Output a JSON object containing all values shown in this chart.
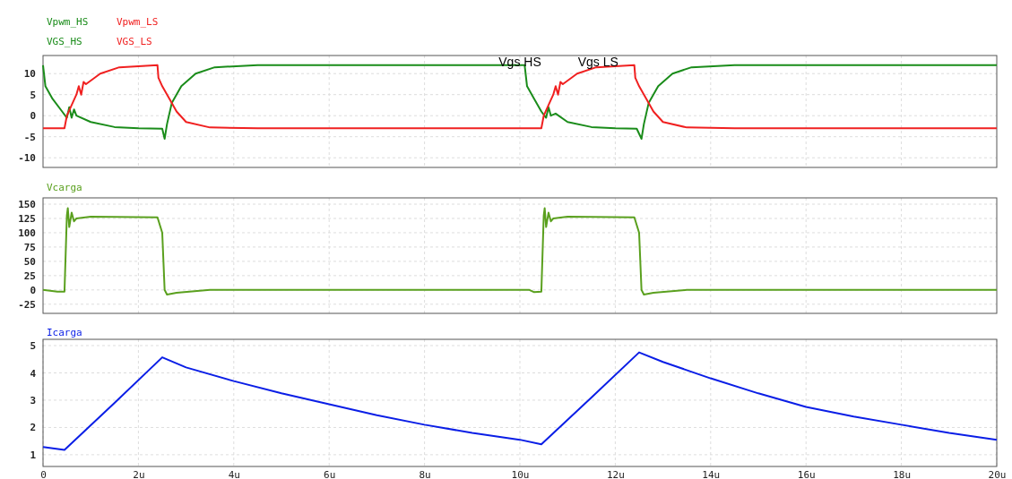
{
  "chart_data": [
    {
      "type": "line",
      "x": [
        0,
        0.05,
        0.2,
        0.4,
        0.5,
        0.55,
        0.6,
        0.65,
        0.7,
        1.0,
        1.5,
        2.0,
        2.5,
        2.55,
        2.6,
        2.7,
        2.9,
        3.2,
        3.6,
        4.5,
        10.1,
        10.15,
        10.3,
        10.45,
        10.55,
        10.6,
        10.65,
        10.75,
        11.0,
        11.5,
        12.0,
        12.45,
        12.55,
        12.6,
        12.7,
        12.9,
        13.2,
        13.6,
        14.5,
        20
      ],
      "series": [
        {
          "name": "VGS_HS",
          "color": "#1a8c1a",
          "values": [
            12,
            7,
            4,
            1,
            -0.5,
            2,
            -0.5,
            1.5,
            0,
            -1.5,
            -2.7,
            -3,
            -3.1,
            -5.5,
            -2,
            3,
            7,
            10,
            11.5,
            12,
            12,
            7,
            4,
            1,
            -0.5,
            2,
            0,
            0.5,
            -1.5,
            -2.7,
            -3,
            -3.1,
            -5.5,
            -2,
            3,
            7,
            10,
            11.5,
            12,
            12
          ]
        },
        {
          "name": "VGS_LS",
          "color": "#f02020",
          "x": [
            0,
            0.45,
            0.5,
            0.7,
            0.75,
            0.8,
            0.85,
            0.9,
            1.2,
            1.6,
            2.4,
            2.42,
            2.5,
            2.7,
            2.8,
            3.0,
            3.5,
            4.5,
            10.45,
            10.5,
            10.7,
            10.75,
            10.8,
            10.85,
            10.9,
            11.2,
            11.6,
            12.4,
            12.42,
            12.5,
            12.7,
            12.8,
            13.0,
            13.5,
            14.5,
            20
          ],
          "values": [
            -3,
            -3,
            0,
            5,
            7,
            5,
            8,
            7.5,
            10,
            11.5,
            12,
            9,
            7,
            3,
            1,
            -1.5,
            -2.8,
            -3,
            -3,
            0,
            5,
            7,
            5,
            8,
            7.5,
            10,
            11.5,
            12,
            9,
            7,
            3,
            1,
            -1.5,
            -2.8,
            -3,
            -3
          ]
        }
      ],
      "annotations": [
        "Vpwm_HS",
        "Vpwm_LS",
        "Vgs HS",
        "Vgs LS"
      ],
      "legend": "top left",
      "xlim": [
        0,
        20
      ],
      "ylim": [
        -12.3,
        14.3
      ],
      "yticks": [
        -10,
        -5,
        0,
        5,
        10
      ],
      "xticks": [
        {
          "value": 2,
          "label": null
        },
        {
          "value": 4,
          "label": null
        },
        {
          "value": 6,
          "label": null
        },
        {
          "value": 8,
          "label": null
        },
        {
          "value": 10,
          "label": null
        },
        {
          "value": 12,
          "label": null
        },
        {
          "value": 14,
          "label": null
        },
        {
          "value": 16,
          "label": null
        },
        {
          "value": 18,
          "label": null
        }
      ],
      "grid": true,
      "tick_labels": "y"
    },
    {
      "type": "line",
      "x": [
        0,
        0.3,
        0.45,
        0.5,
        0.52,
        0.55,
        0.6,
        0.65,
        0.7,
        1.0,
        2.4,
        2.5,
        2.55,
        2.6,
        2.8,
        3.5,
        10.2,
        10.3,
        10.45,
        10.5,
        10.52,
        10.55,
        10.6,
        10.65,
        10.7,
        11.0,
        12.4,
        12.5,
        12.55,
        12.6,
        12.8,
        13.5,
        20
      ],
      "series": [
        {
          "name": "Vcarga",
          "color": "#5aa01e",
          "values": [
            0,
            -3,
            -3,
            130,
            143,
            110,
            135,
            120,
            125,
            128,
            127,
            100,
            0,
            -8,
            -5,
            0,
            0,
            -4,
            -3,
            130,
            143,
            110,
            135,
            120,
            125,
            128,
            127,
            100,
            0,
            -8,
            -5,
            0,
            0
          ]
        }
      ],
      "legend": "top left",
      "xlim": [
        0,
        20
      ],
      "ylim": [
        -41,
        161
      ],
      "yticks": [
        -25,
        0,
        25,
        50,
        75,
        100,
        125,
        150
      ],
      "xticks": [
        {
          "value": 2,
          "label": null
        },
        {
          "value": 4,
          "label": null
        },
        {
          "value": 6,
          "label": null
        },
        {
          "value": 8,
          "label": null
        },
        {
          "value": 10,
          "label": null
        },
        {
          "value": 12,
          "label": null
        },
        {
          "value": 14,
          "label": null
        },
        {
          "value": 16,
          "label": null
        },
        {
          "value": 18,
          "label": null
        }
      ],
      "grid": true,
      "tick_labels": "y"
    },
    {
      "type": "line",
      "x": [
        0,
        0.45,
        1.5,
        2.5,
        3,
        4,
        5,
        6,
        7,
        8,
        9,
        10,
        10.45,
        11.5,
        12.5,
        13,
        14,
        15,
        16,
        17,
        18,
        19,
        20
      ],
      "series": [
        {
          "name": "Icarga",
          "color": "#0a1ee6",
          "values": [
            1.28,
            1.18,
            2.9,
            4.57,
            4.2,
            3.7,
            3.25,
            2.85,
            2.45,
            2.1,
            1.8,
            1.55,
            1.38,
            3.1,
            4.75,
            4.4,
            3.8,
            3.25,
            2.75,
            2.4,
            2.1,
            1.8,
            1.55
          ]
        }
      ],
      "legend": "top left",
      "xlim": [
        0,
        20
      ],
      "ylim": [
        0.57,
        5.23
      ],
      "yticks": [
        1,
        2,
        3,
        4,
        5
      ],
      "xticks": [
        0,
        {
          "value": 2,
          "label": "2u"
        },
        {
          "value": 4,
          "label": "4u"
        },
        {
          "value": 6,
          "label": "6u"
        },
        {
          "value": 8,
          "label": "8u"
        },
        {
          "value": 10,
          "label": "10u"
        },
        {
          "value": 12,
          "label": "12u"
        },
        {
          "value": 14,
          "label": "14u"
        },
        {
          "value": 16,
          "label": "16u"
        },
        {
          "value": 18,
          "label": "18u"
        },
        {
          "value": 20,
          "label": "20u"
        }
      ],
      "grid": true
    }
  ]
}
